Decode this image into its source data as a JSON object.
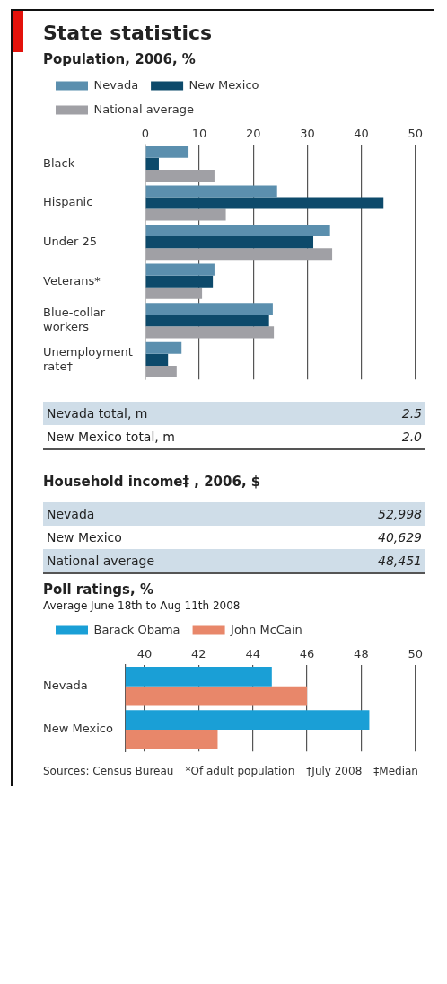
{
  "chart_data": [
    {
      "type": "bar",
      "orientation": "horizontal",
      "title": "State statistics",
      "subtitle": "Population, 2006, %",
      "categories": [
        "Black",
        "Hispanic",
        "Under 25",
        "Veterans*",
        "Blue-collar workers",
        "Unemployment rate†"
      ],
      "series": [
        {
          "name": "Nevada",
          "color": "#5b8fae",
          "values": [
            8,
            24.4,
            34.2,
            12.8,
            23.6,
            6.7
          ]
        },
        {
          "name": "New Mexico",
          "color": "#0d4a6b",
          "values": [
            2.5,
            44.1,
            31.1,
            12.5,
            22.9,
            4.2
          ]
        },
        {
          "name": "National average",
          "color": "#a0a0a5",
          "values": [
            12.8,
            14.9,
            34.6,
            10.5,
            23.8,
            5.8
          ]
        }
      ],
      "xlim": [
        0,
        50
      ],
      "xticks": [
        0,
        10,
        20,
        30,
        40,
        50
      ],
      "grid": "x",
      "legend": "top"
    },
    {
      "type": "other",
      "categories": [
        "Nevada total, m",
        "New Mexico total, m"
      ],
      "value_labels": [
        "2.5",
        "2.0"
      ]
    },
    {
      "type": "other",
      "title": "Household income‡ , 2006, $",
      "categories": [
        "Nevada",
        "New Mexico",
        "National average"
      ],
      "value_labels": [
        "52,998",
        "40,629",
        "48,451"
      ]
    },
    {
      "type": "bar",
      "orientation": "horizontal",
      "title": "Poll ratings, %",
      "subtitle": "Average June 18th to Aug 11th 2008",
      "categories": [
        "Nevada",
        "New Mexico"
      ],
      "series": [
        {
          "name": "Barack Obama",
          "color": "#1a9fd6",
          "values": [
            44.7,
            48.3
          ]
        },
        {
          "name": "John McCain",
          "color": "#e8876a",
          "values": [
            46.0,
            42.7
          ]
        }
      ],
      "xlim": [
        39.3,
        50
      ],
      "xticks": [
        40,
        42,
        44,
        46,
        48,
        50
      ],
      "grid": "x",
      "legend": "top",
      "annotations": [
        "Sources: Census Bureau",
        "*Of adult population",
        "†July 2008",
        "‡Median"
      ]
    }
  ]
}
